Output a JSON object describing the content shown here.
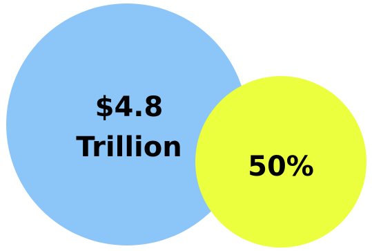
{
  "colors": {
    "big_circle": "#8cc5f7",
    "small_circle": "#ebff3f",
    "text": "#000000",
    "background": "#ffffff"
  },
  "big_circle": {
    "line1": "$4.8",
    "line2": "Trillion"
  },
  "small_circle": {
    "label": "50%"
  }
}
